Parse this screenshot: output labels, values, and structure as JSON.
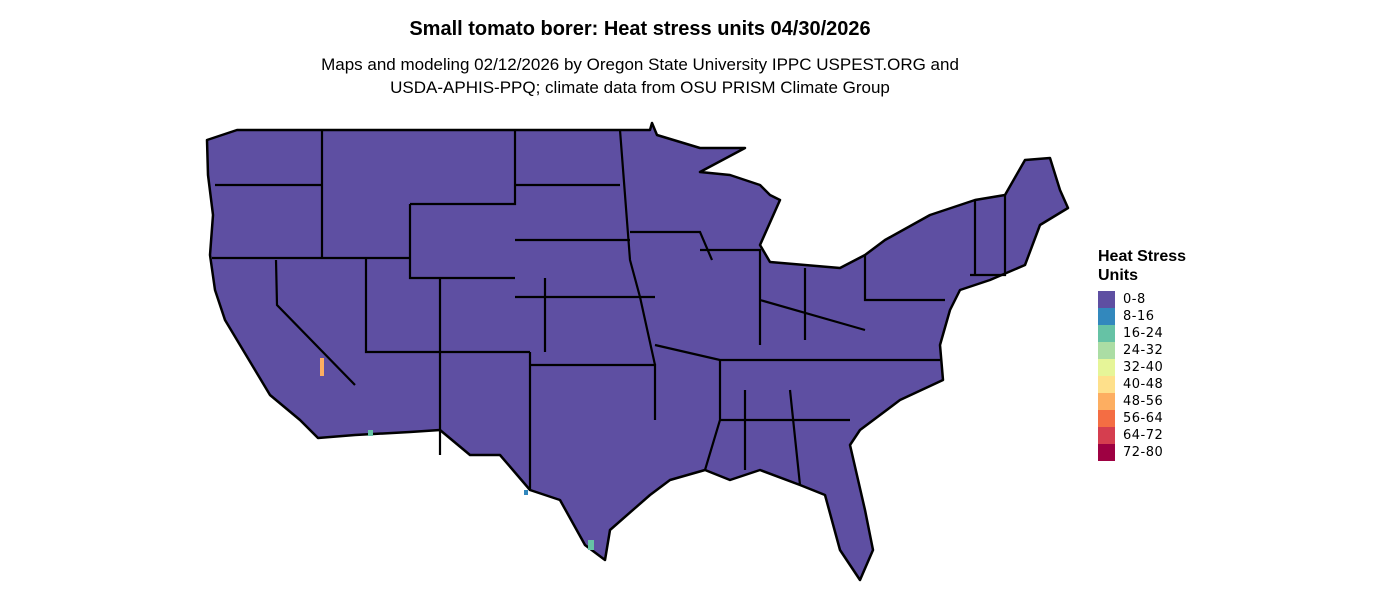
{
  "title": "Small tomato borer: Heat stress units 04/30/2026",
  "subtitle_line1": "Maps and modeling 02/12/2026 by Oregon State University IPPC USPEST.ORG and",
  "subtitle_line2": "USDA-APHIS-PPQ; climate data from OSU PRISM Climate Group",
  "legend": {
    "title_line1": "Heat Stress",
    "title_line2": "Units",
    "items": [
      {
        "label": "0-8",
        "color": "#5E4FA2"
      },
      {
        "label": "8-16",
        "color": "#3288BD"
      },
      {
        "label": "16-24",
        "color": "#66C2A5"
      },
      {
        "label": "24-32",
        "color": "#ABDDA4"
      },
      {
        "label": "32-40",
        "color": "#E6F598"
      },
      {
        "label": "40-48",
        "color": "#FEE08B"
      },
      {
        "label": "48-56",
        "color": "#FDAE61"
      },
      {
        "label": "56-64",
        "color": "#F46D43"
      },
      {
        "label": "64-72",
        "color": "#D53E4F"
      },
      {
        "label": "72-80",
        "color": "#9E0142"
      }
    ]
  },
  "map": {
    "dominant_class": "0-8",
    "fill_color": "#5E4FA2",
    "border_color": "#000000"
  }
}
